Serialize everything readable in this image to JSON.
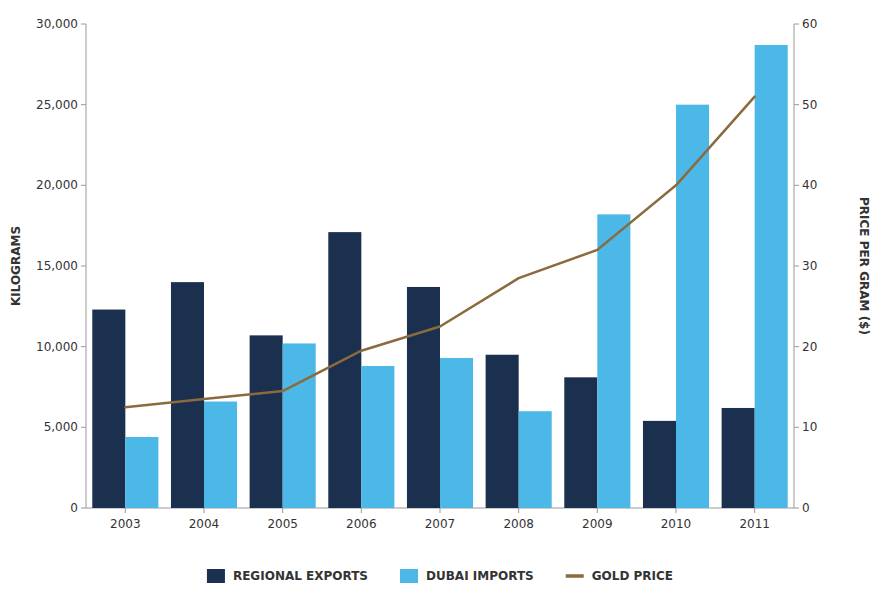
{
  "chart_data": {
    "type": "bar",
    "categories": [
      "2003",
      "2004",
      "2005",
      "2006",
      "2007",
      "2008",
      "2009",
      "2010",
      "2011"
    ],
    "series": [
      {
        "name": "REGIONAL EXPORTS",
        "color": "#1b2f4e",
        "values": [
          12300,
          14000,
          10700,
          17100,
          13700,
          9500,
          8100,
          5400,
          6200
        ]
      },
      {
        "name": "DUBAI IMPORTS",
        "color": "#4bb8e8",
        "values": [
          4400,
          6600,
          10200,
          8800,
          9300,
          6000,
          18200,
          25000,
          28700
        ]
      },
      {
        "name": "GOLD PRICE",
        "type": "line",
        "axis": "y2",
        "color": "#8b6a3e",
        "values": [
          12.5,
          13.5,
          14.5,
          19.5,
          22.5,
          28.5,
          32.0,
          40.0,
          51.0
        ]
      }
    ],
    "ylabel": "KILOGRAMS",
    "y2label": "PRICE PER GRAM ($)",
    "ylim": [
      0,
      30000
    ],
    "yticks": [
      0,
      {
        "value": 5000,
        "label": "5,000"
      },
      {
        "value": 10000,
        "label": "10,000"
      },
      {
        "value": 15000,
        "label": "15,000"
      },
      {
        "value": 20000,
        "label": "20,000"
      },
      {
        "value": 25000,
        "label": "25,000"
      },
      {
        "value": 30000,
        "label": "30,000"
      }
    ],
    "y2lim": [
      0,
      60
    ],
    "y2ticks": [
      0,
      10,
      20,
      30,
      40,
      50,
      60
    ],
    "grid": false,
    "legend": "bottom"
  }
}
